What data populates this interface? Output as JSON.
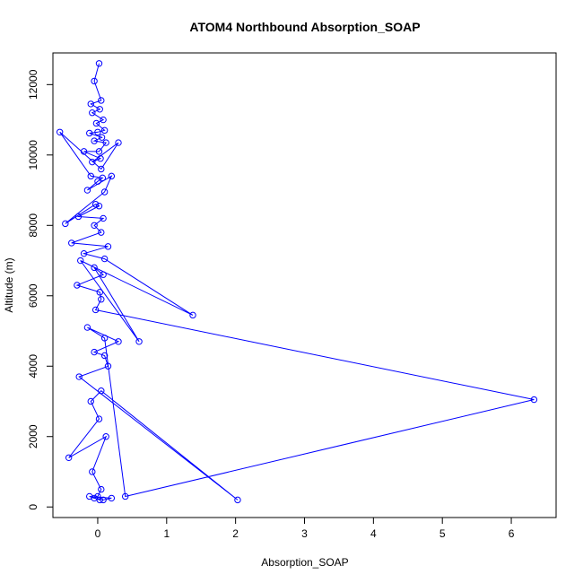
{
  "chart_data": {
    "type": "line",
    "title": "ATOM4 Northbound Absorption_SOAP",
    "xlabel": "Absorption_SOAP",
    "ylabel": "Altitude (m)",
    "xlim": [
      -0.65,
      6.65
    ],
    "ylim": [
      -300,
      12900
    ],
    "x_ticks": [
      0,
      1,
      2,
      3,
      4,
      5,
      6
    ],
    "y_ticks": [
      0,
      2000,
      4000,
      6000,
      8000,
      10000,
      12000
    ],
    "grid": false,
    "legend": "none",
    "series": [
      {
        "color": "#0000ff",
        "marker": "open-circle",
        "x": [
          0.02,
          -0.05,
          0.05,
          -0.1,
          0.03,
          -0.08,
          0.08,
          -0.02,
          0.1,
          0.0,
          -0.12,
          0.06,
          -0.05,
          0.12,
          0.02,
          -0.2,
          0.04,
          -0.08,
          0.3,
          0.05,
          -0.55,
          -0.1,
          0.07,
          0.0,
          -0.15,
          0.2,
          0.1,
          -0.47,
          -0.03,
          0.02,
          -0.28,
          0.08,
          -0.05,
          0.05,
          -0.38,
          0.15,
          -0.2,
          0.1,
          1.38,
          -0.25,
          0.6,
          -0.05,
          0.08,
          -0.3,
          0.03,
          0.05,
          -0.03,
          6.33,
          0.4,
          0.1,
          -0.15,
          0.3,
          -0.05,
          0.1,
          0.15,
          -0.27,
          2.03,
          0.05,
          -0.1,
          0.02,
          -0.42,
          0.12,
          -0.08,
          0.05,
          0.0,
          -0.05,
          0.08,
          0.2,
          -0.12,
          0.03
        ],
        "y": [
          12600,
          12100,
          11550,
          11450,
          11300,
          11200,
          11000,
          10900,
          10700,
          10650,
          10620,
          10500,
          10400,
          10350,
          10100,
          10100,
          9900,
          9800,
          10350,
          9600,
          10650,
          9400,
          9350,
          9250,
          9000,
          9400,
          8950,
          8050,
          8600,
          8550,
          8250,
          8200,
          8000,
          7800,
          7500,
          7400,
          7200,
          7050,
          5450,
          7000,
          4700,
          6800,
          6600,
          6300,
          6100,
          5900,
          5600,
          3050,
          300,
          4800,
          5100,
          4700,
          4400,
          4300,
          4000,
          3700,
          200,
          3300,
          3000,
          2500,
          1400,
          2000,
          1000,
          500,
          300,
          250,
          200,
          250,
          300,
          200
        ]
      }
    ]
  }
}
